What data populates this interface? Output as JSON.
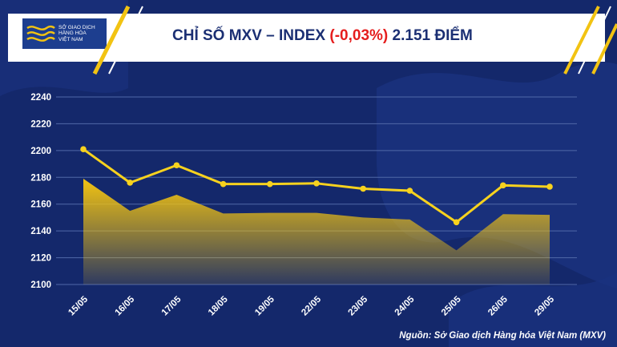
{
  "header": {
    "title_prefix": "CHỈ SỐ MXV – INDEX",
    "title_change": "(-0,03%)",
    "title_suffix": "2.151 ĐIỂM",
    "logo_lines": [
      "SỞ GIAO DỊCH",
      "HÀNG HÓA",
      "VIỆT NAM"
    ]
  },
  "source": "Nguồn: Sở Giao dịch Hàng hóa Việt Nam (MXV)",
  "colors": {
    "background": "#14286b",
    "line": "#f7d21e",
    "area_top": "#f2c312",
    "grid": "#5068a8",
    "title": "#1b2f73",
    "negative": "#e51d1d"
  },
  "chart_data": {
    "type": "line",
    "categories": [
      "15/05",
      "16/05",
      "17/05",
      "18/05",
      "19/05",
      "22/05",
      "23/05",
      "24/05",
      "25/05",
      "26/05",
      "29/05"
    ],
    "series": [
      {
        "values": [
          2201,
          2176,
          2189,
          2175,
          2175,
          2175.5,
          2171.5,
          2170,
          2146.5,
          2174,
          2173
        ]
      },
      {
        "values": [
          2179,
          2155,
          2167,
          2153,
          2153.5,
          2153.5,
          2150,
          2148.5,
          2125.5,
          2152.5,
          2152
        ]
      }
    ],
    "ylim": [
      2100,
      2240
    ],
    "yticks": [
      "2240",
      "2220",
      "2200",
      "2180",
      "2160",
      "2140",
      "2120",
      "2100"
    ],
    "grid": true
  }
}
